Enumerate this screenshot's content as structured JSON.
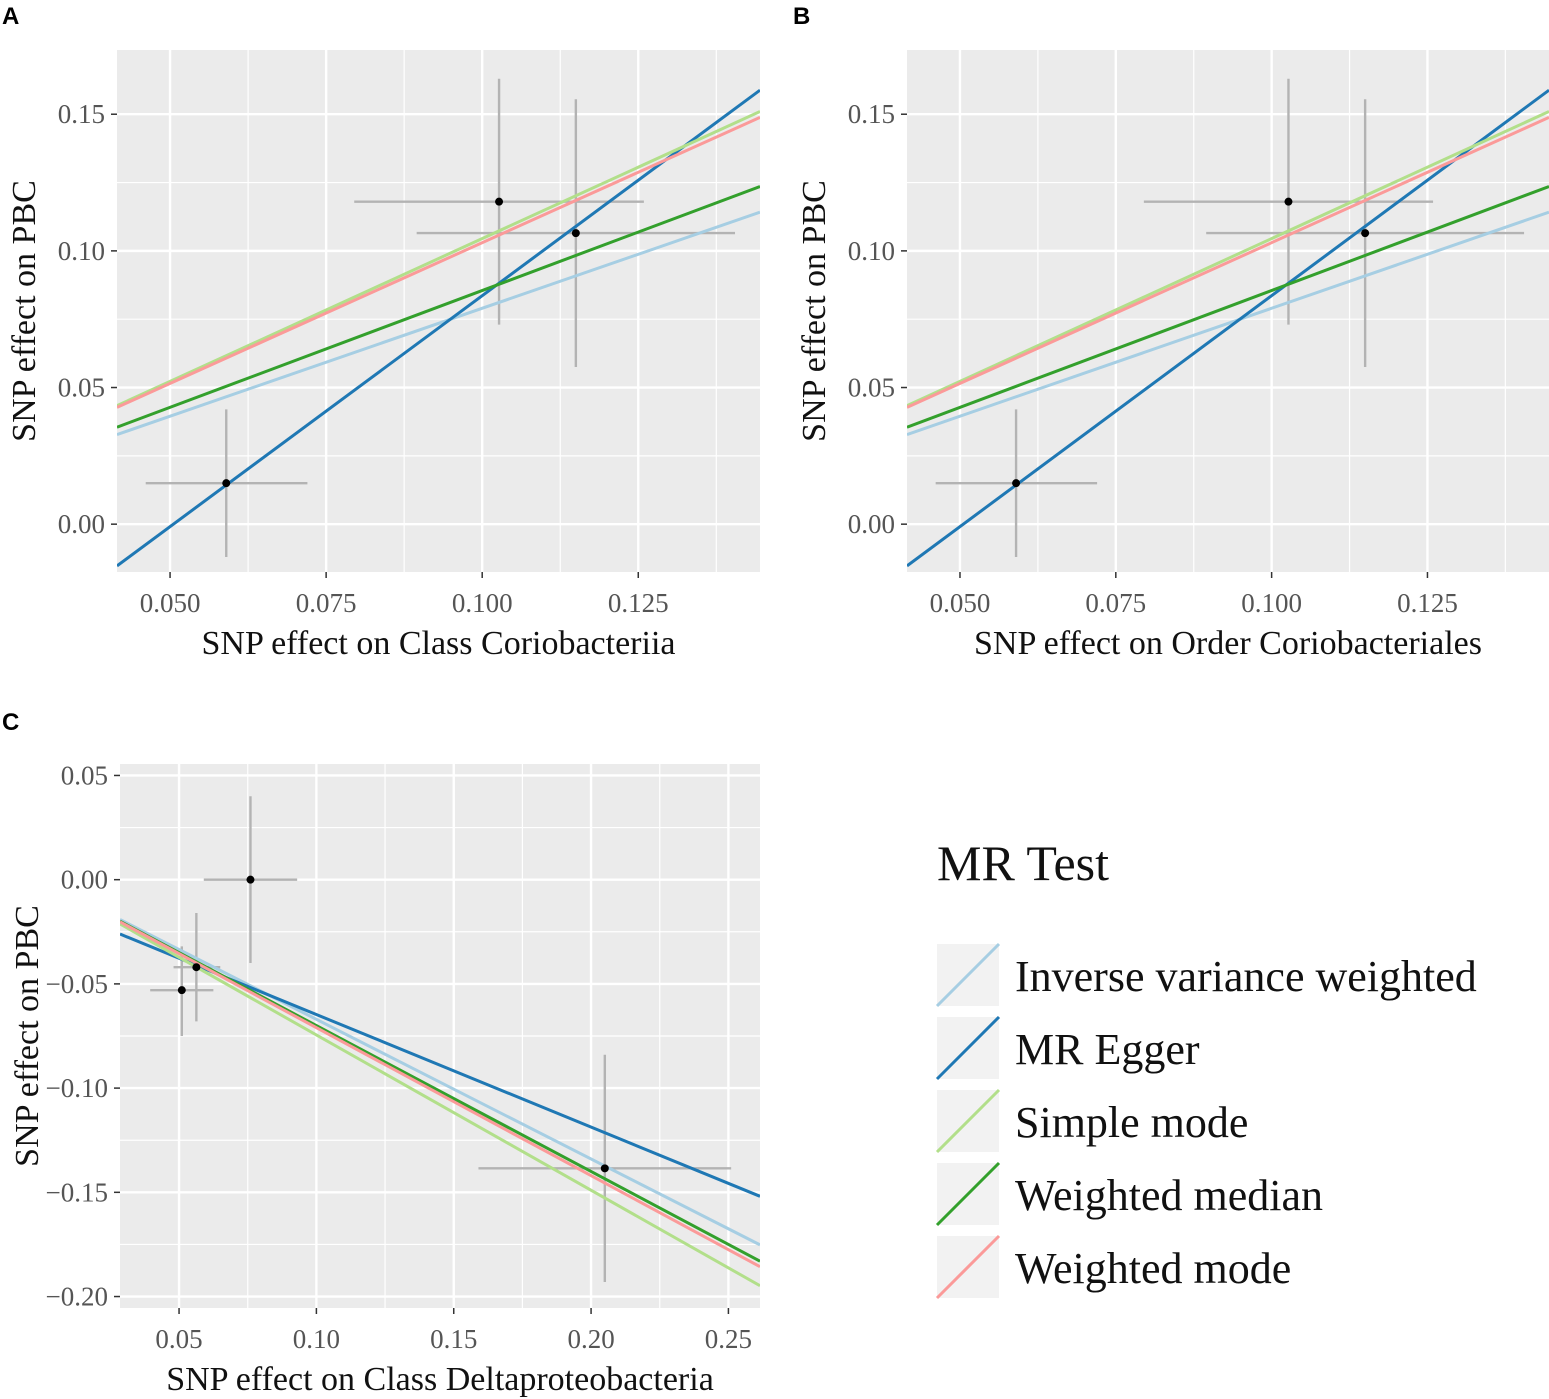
{
  "figure_colors": {
    "panel_bg": "#ebebeb",
    "grid": "#ffffff",
    "point": "#000000",
    "errorbar": "#b3b3b3"
  },
  "legend": {
    "title": "MR Test",
    "items": [
      {
        "label": "Inverse variance weighted",
        "color": "#a6cee3"
      },
      {
        "label": "MR Egger",
        "color": "#1f78b4"
      },
      {
        "label": "Simple mode",
        "color": "#b2df8a"
      },
      {
        "label": "Weighted median",
        "color": "#33a02c"
      },
      {
        "label": "Weighted mode",
        "color": "#fb9a99"
      }
    ]
  },
  "chart_data": [
    {
      "panel": "A",
      "type": "scatter",
      "xlabel": "SNP effect on Class Coriobacteriia",
      "ylabel": "SNP effect on PBC",
      "xlim": [
        0.0415,
        0.1445
      ],
      "ylim": [
        -0.0175,
        0.1735
      ],
      "xticks": [
        0.05,
        0.075,
        0.1,
        0.125
      ],
      "xtick_labels": [
        "0.050",
        "0.075",
        "0.100",
        "0.125"
      ],
      "yticks": [
        0.0,
        0.05,
        0.1,
        0.15
      ],
      "ytick_labels": [
        "0.00",
        "0.05",
        "0.10",
        "0.15"
      ],
      "points": [
        {
          "x": 0.059,
          "y": 0.015,
          "xmin": 0.0461,
          "xmax": 0.072,
          "ymin": -0.012,
          "ymax": 0.042
        },
        {
          "x": 0.1027,
          "y": 0.118,
          "xmin": 0.0795,
          "xmax": 0.1259,
          "ymin": 0.073,
          "ymax": 0.163
        },
        {
          "x": 0.115,
          "y": 0.1065,
          "xmin": 0.0895,
          "xmax": 0.1405,
          "ymin": 0.0575,
          "ymax": 0.1555
        }
      ],
      "lines": [
        {
          "method": "Inverse variance weighted",
          "intercept": 0.0,
          "slope": 0.79
        },
        {
          "method": "MR Egger",
          "intercept": -0.0854,
          "slope": 1.69
        },
        {
          "method": "Simple mode",
          "intercept": 0.0,
          "slope": 1.045
        },
        {
          "method": "Weighted median",
          "intercept": 0.0,
          "slope": 0.855
        },
        {
          "method": "Weighted mode",
          "intercept": 0.0,
          "slope": 1.03
        }
      ]
    },
    {
      "panel": "B",
      "type": "scatter",
      "xlabel": "SNP effect on Order Coriobacteriales",
      "ylabel": "SNP effect on PBC",
      "xlim": [
        0.0415,
        0.1445
      ],
      "ylim": [
        -0.0175,
        0.1735
      ],
      "xticks": [
        0.05,
        0.075,
        0.1,
        0.125
      ],
      "xtick_labels": [
        "0.050",
        "0.075",
        "0.100",
        "0.125"
      ],
      "yticks": [
        0.0,
        0.05,
        0.1,
        0.15
      ],
      "ytick_labels": [
        "0.00",
        "0.05",
        "0.10",
        "0.15"
      ],
      "points": [
        {
          "x": 0.059,
          "y": 0.015,
          "xmin": 0.0461,
          "xmax": 0.072,
          "ymin": -0.012,
          "ymax": 0.042
        },
        {
          "x": 0.1027,
          "y": 0.118,
          "xmin": 0.0795,
          "xmax": 0.1259,
          "ymin": 0.073,
          "ymax": 0.163
        },
        {
          "x": 0.115,
          "y": 0.1065,
          "xmin": 0.0895,
          "xmax": 0.1405,
          "ymin": 0.0575,
          "ymax": 0.1555
        }
      ],
      "lines": [
        {
          "method": "Inverse variance weighted",
          "intercept": 0.0,
          "slope": 0.79
        },
        {
          "method": "MR Egger",
          "intercept": -0.0854,
          "slope": 1.69
        },
        {
          "method": "Simple mode",
          "intercept": 0.0,
          "slope": 1.045
        },
        {
          "method": "Weighted median",
          "intercept": 0.0,
          "slope": 0.855
        },
        {
          "method": "Weighted mode",
          "intercept": 0.0,
          "slope": 1.03
        }
      ]
    },
    {
      "panel": "C",
      "type": "scatter",
      "xlabel": "SNP effect on Class Deltaproteobacteria",
      "ylabel": "SNP effect on PBC",
      "xlim": [
        0.0285,
        0.2615
      ],
      "ylim": [
        -0.2055,
        0.0555
      ],
      "xticks": [
        0.05,
        0.1,
        0.15,
        0.2,
        0.25
      ],
      "xtick_labels": [
        "0.05",
        "0.10",
        "0.15",
        "0.20",
        "0.25"
      ],
      "yticks": [
        -0.2,
        -0.15,
        -0.1,
        -0.05,
        0.0,
        0.05
      ],
      "ytick_labels": [
        "−0.20",
        "−0.15",
        "−0.10",
        "−0.05",
        "0.00",
        "0.05"
      ],
      "points": [
        {
          "x": 0.051,
          "y": -0.053,
          "xmin": 0.0395,
          "xmax": 0.0625,
          "ymin": -0.075,
          "ymax": -0.032
        },
        {
          "x": 0.0563,
          "y": -0.042,
          "xmin": 0.048,
          "xmax": 0.065,
          "ymin": -0.068,
          "ymax": -0.016
        },
        {
          "x": 0.076,
          "y": 0.0,
          "xmin": 0.059,
          "xmax": 0.093,
          "ymin": -0.04,
          "ymax": 0.04
        },
        {
          "x": 0.205,
          "y": -0.1385,
          "xmin": 0.159,
          "xmax": 0.251,
          "ymin": -0.193,
          "ymax": -0.084
        }
      ],
      "lines": [
        {
          "method": "Inverse variance weighted",
          "intercept": 0.0,
          "slope": -0.67
        },
        {
          "method": "MR Egger",
          "intercept": -0.0107,
          "slope": -0.54
        },
        {
          "method": "Simple mode",
          "intercept": 0.0,
          "slope": -0.745
        },
        {
          "method": "Weighted median",
          "intercept": 0.0,
          "slope": -0.7
        },
        {
          "method": "Weighted mode",
          "intercept": 0.0,
          "slope": -0.71
        }
      ]
    }
  ]
}
